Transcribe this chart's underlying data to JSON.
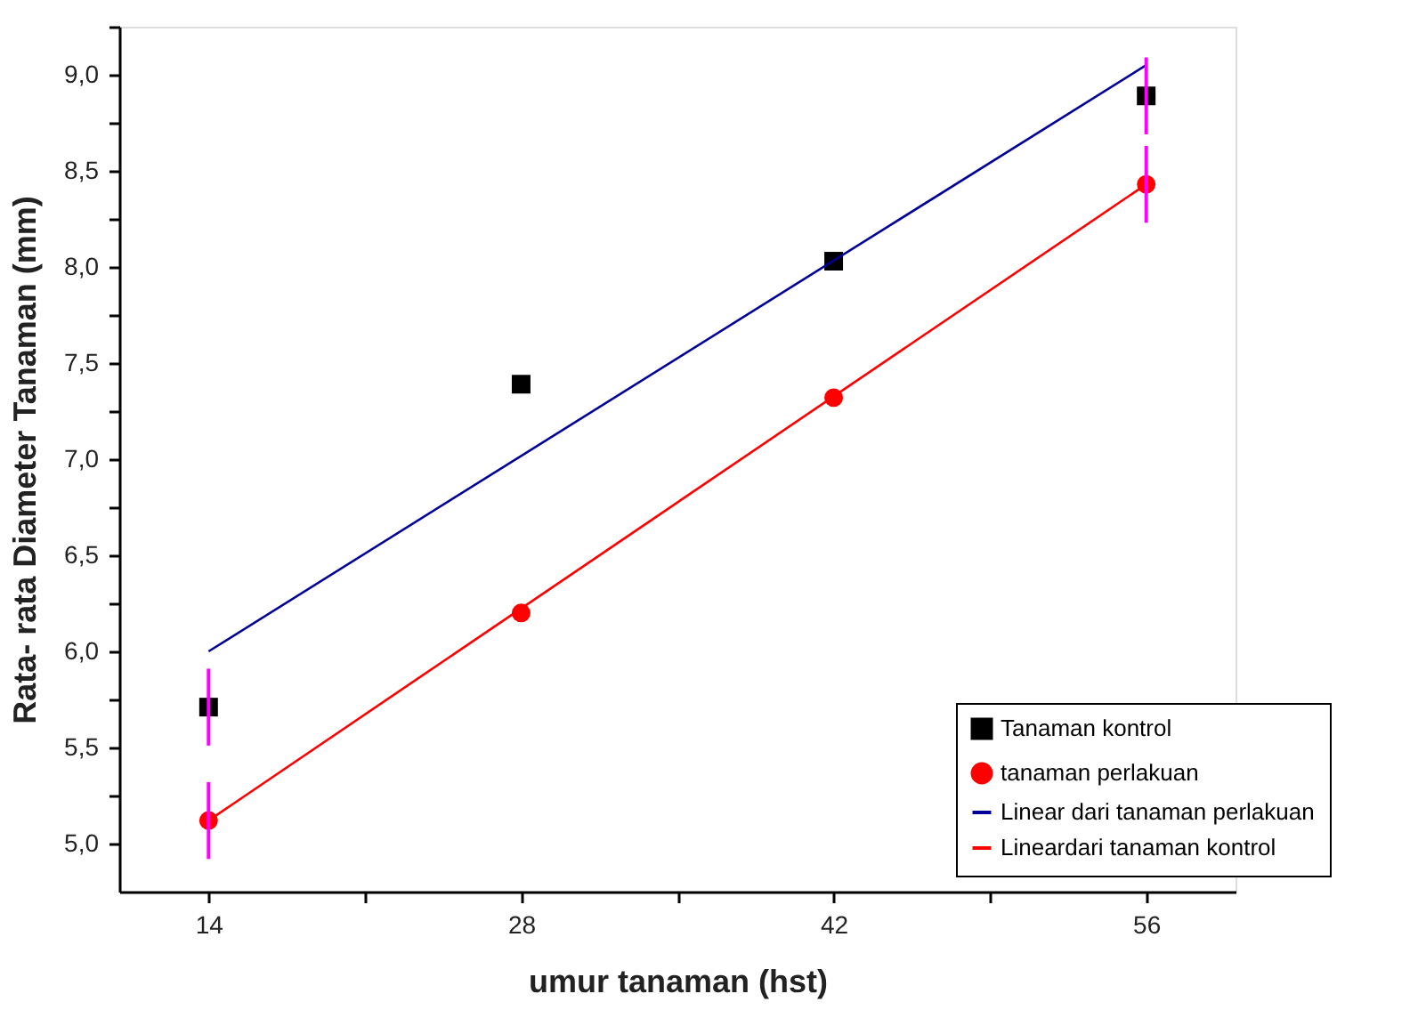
{
  "chart_data": {
    "type": "scatter",
    "xlabel": "umur tanaman (hst)",
    "ylabel": "Rata- rata Diameter Tanaman (mm)",
    "series": [
      {
        "name": "Tanaman kontrol",
        "marker": "square",
        "color": "#000000",
        "x": [
          14,
          28,
          42,
          56
        ],
        "values": [
          5.71,
          7.39,
          8.03,
          8.89
        ],
        "errors": [
          0.2,
          null,
          null,
          0.2
        ]
      },
      {
        "name": "tanaman perlakuan",
        "marker": "circle",
        "color": "#ff0000",
        "x": [
          14,
          28,
          42,
          56
        ],
        "values": [
          5.12,
          6.2,
          7.32,
          8.43
        ],
        "errors": [
          0.2,
          null,
          null,
          0.2
        ]
      },
      {
        "name": "Linear dari tanaman perlakuan",
        "type": "line",
        "marker": "none",
        "color": "#000099",
        "x": [
          14,
          56
        ],
        "values": [
          6.0,
          9.05
        ]
      },
      {
        "name": "Lineardari tanaman kontrol",
        "type": "line",
        "marker": "none",
        "color": "#ff0000",
        "x": [
          14,
          56
        ],
        "values": [
          5.12,
          8.43
        ]
      }
    ],
    "xlim": [
      10,
      60
    ],
    "xticks": [
      14,
      {
        "value": 21,
        "label": null
      },
      28,
      {
        "value": 35,
        "label": null
      },
      42,
      {
        "value": 49,
        "label": null
      },
      56
    ],
    "ylim": [
      4.75,
      9.25
    ],
    "yticks": [
      {
        "value": 5,
        "label": "5,0"
      },
      {
        "value": 5.25,
        "label": null
      },
      {
        "value": 5.5,
        "label": "5,5"
      },
      {
        "value": 5.75,
        "label": null
      },
      {
        "value": 6,
        "label": "6,0"
      },
      {
        "value": 6.25,
        "label": null
      },
      {
        "value": 6.5,
        "label": "6,5"
      },
      {
        "value": 6.75,
        "label": null
      },
      {
        "value": 7,
        "label": "7,0"
      },
      {
        "value": 7.25,
        "label": null
      },
      {
        "value": 7.5,
        "label": "7,5"
      },
      {
        "value": 7.75,
        "label": null
      },
      {
        "value": 8,
        "label": "8,0"
      },
      {
        "value": 8.25,
        "label": null
      },
      {
        "value": 8.5,
        "label": "8,5"
      },
      {
        "value": 8.75,
        "label": null
      },
      {
        "value": 9,
        "label": "9,0"
      },
      {
        "value": 9.25,
        "label": null
      }
    ],
    "grid": false,
    "legend": "bottom right",
    "line_style": "solid"
  }
}
